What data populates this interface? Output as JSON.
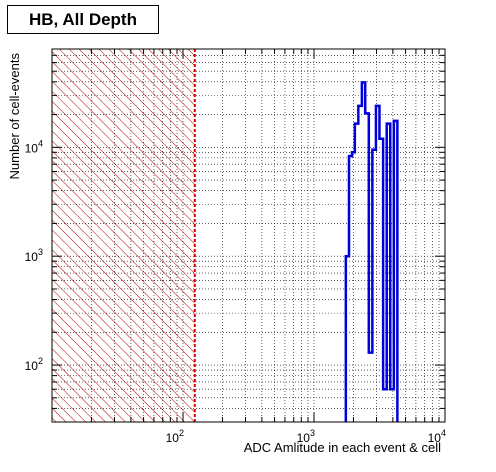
{
  "chart_data": {
    "type": "histogram",
    "title": "HB, All Depth",
    "xlabel": "ADC Amlitude in each event & cell",
    "ylabel": "Number of cell-events",
    "x_scale": "log",
    "y_scale": "log",
    "xlim": [
      10,
      10000
    ],
    "ylim": [
      30,
      80000
    ],
    "grid": true,
    "x_ticks": [
      {
        "value": 100,
        "base": "10",
        "exp": "2"
      },
      {
        "value": 1000,
        "base": "10",
        "exp": "3"
      },
      {
        "value": 10000,
        "base": "10",
        "exp": "4"
      }
    ],
    "y_ticks": [
      {
        "value": 100,
        "base": "10",
        "exp": "2"
      },
      {
        "value": 1000,
        "base": "10",
        "exp": "3"
      },
      {
        "value": 10000,
        "base": "10",
        "exp": "4"
      }
    ],
    "cut_line_x": 123,
    "hatched_region": [
      10,
      123
    ],
    "colors": {
      "histogram": "#0000dd",
      "cut": "#dd0000",
      "hatch": "#bb0000",
      "grid": "#000000"
    },
    "bins": [
      {
        "x0": 1750,
        "x1": 1850,
        "y": 1000
      },
      {
        "x0": 1850,
        "x1": 1950,
        "y": 8300
      },
      {
        "x0": 1950,
        "x1": 2050,
        "y": 9000
      },
      {
        "x0": 2050,
        "x1": 2180,
        "y": 16500
      },
      {
        "x0": 2180,
        "x1": 2320,
        "y": 24000
      },
      {
        "x0": 2320,
        "x1": 2460,
        "y": 39500
      },
      {
        "x0": 2460,
        "x1": 2620,
        "y": 20500
      },
      {
        "x0": 2620,
        "x1": 2790,
        "y": 130
      },
      {
        "x0": 2790,
        "x1": 2970,
        "y": 9500
      },
      {
        "x0": 2970,
        "x1": 3160,
        "y": 24000
      },
      {
        "x0": 3160,
        "x1": 3370,
        "y": 12000
      },
      {
        "x0": 3370,
        "x1": 3590,
        "y": 60
      },
      {
        "x0": 3590,
        "x1": 3820,
        "y": 16500
      },
      {
        "x0": 3820,
        "x1": 4070,
        "y": 60
      },
      {
        "x0": 4070,
        "x1": 4330,
        "y": 17500
      }
    ]
  }
}
